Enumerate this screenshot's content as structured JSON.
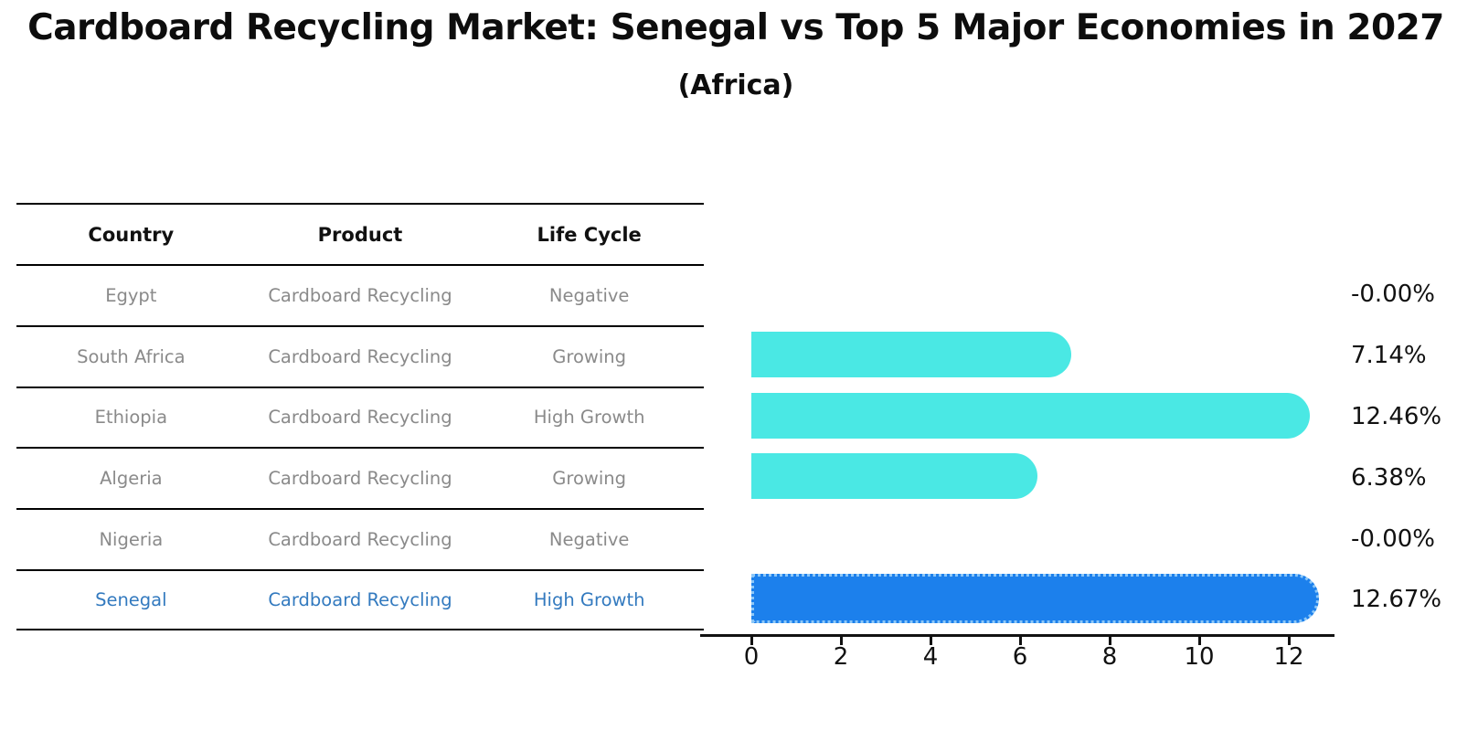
{
  "title": "Cardboard Recycling Market: Senegal vs Top 5 Major Economies in 2027",
  "subtitle": "(Africa)",
  "table": {
    "columns": [
      "Country",
      "Product",
      "Life Cycle"
    ],
    "rows": [
      {
        "country": "Egypt",
        "product": "Cardboard Recycling",
        "life_cycle": "Negative",
        "highlight": false
      },
      {
        "country": "South Africa",
        "product": "Cardboard Recycling",
        "life_cycle": "Growing",
        "highlight": false
      },
      {
        "country": "Ethiopia",
        "product": "Cardboard Recycling",
        "life_cycle": "High Growth",
        "highlight": false
      },
      {
        "country": "Algeria",
        "product": "Cardboard Recycling",
        "life_cycle": "Growing",
        "highlight": false
      },
      {
        "country": "Nigeria",
        "product": "Cardboard Recycling",
        "life_cycle": "Negative",
        "highlight": false
      },
      {
        "country": "Senegal",
        "product": "Cardboard Recycling",
        "life_cycle": "High Growth",
        "highlight": true
      }
    ]
  },
  "chart_data": {
    "type": "bar",
    "orientation": "horizontal",
    "title": "Cardboard Recycling Market: Senegal vs Top 5 Major Economies in 2027",
    "subtitle": "(Africa)",
    "categories": [
      "Egypt",
      "South Africa",
      "Ethiopia",
      "Algeria",
      "Nigeria",
      "Senegal"
    ],
    "values": [
      -0.0,
      7.14,
      12.46,
      6.38,
      -0.0,
      12.67
    ],
    "value_labels": [
      "-0.00%",
      "7.14%",
      "12.46%",
      "6.38%",
      "-0.00%",
      "12.67%"
    ],
    "x_ticks": [
      "0",
      "2",
      "4",
      "6",
      "8",
      "10",
      "12"
    ],
    "xlim": [
      0,
      13
    ],
    "xlabel": "",
    "ylabel": "",
    "grid": false,
    "legend": false,
    "highlight_index": 5
  },
  "colors": {
    "bar": "#4AE8E4",
    "highlight_bar": "#1C80EC",
    "highlight_border": "#8CC7F8",
    "highlight_text": "#337ABF",
    "table_text": "#8a8a8a",
    "header_text": "#111111"
  }
}
